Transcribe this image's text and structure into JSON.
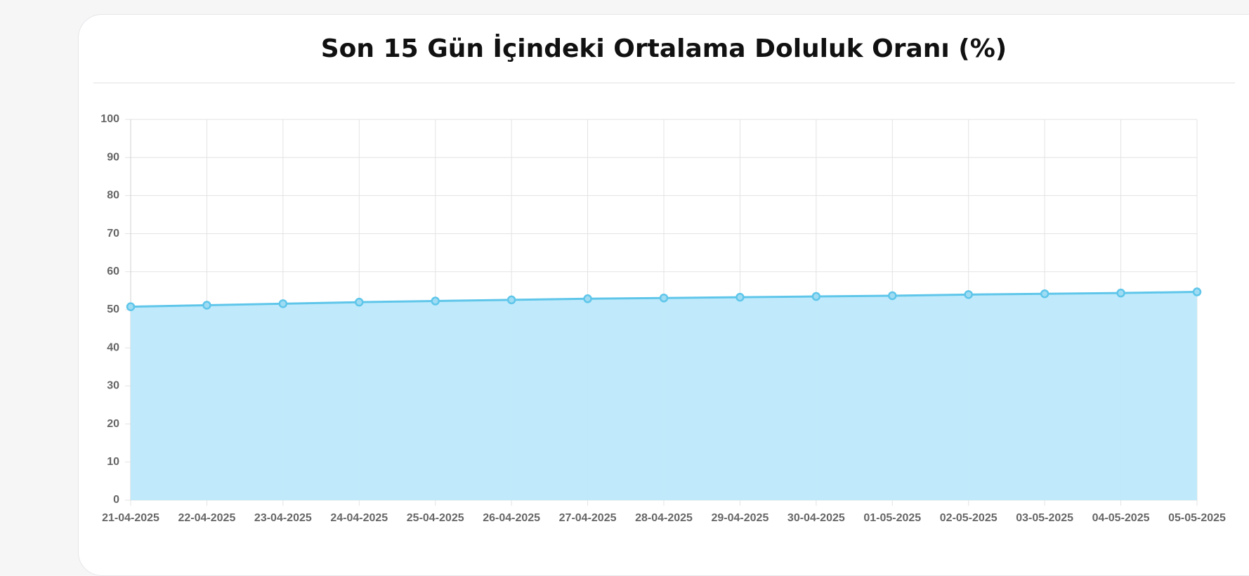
{
  "chart_data": {
    "type": "line",
    "title": "Son 15 Gün İçindeki Ortalama Doluluk Oranı (%)",
    "categories": [
      "21-04-2025",
      "22-04-2025",
      "23-04-2025",
      "24-04-2025",
      "25-04-2025",
      "26-04-2025",
      "27-04-2025",
      "28-04-2025",
      "29-04-2025",
      "30-04-2025",
      "01-05-2025",
      "02-05-2025",
      "03-05-2025",
      "04-05-2025",
      "05-05-2025"
    ],
    "values": [
      50.8,
      51.2,
      51.6,
      52.0,
      52.3,
      52.6,
      52.9,
      53.1,
      53.3,
      53.5,
      53.7,
      54.0,
      54.2,
      54.4,
      54.7
    ],
    "color": "#5fc6ea",
    "fill": true,
    "fill_color": "#bde9fb",
    "ylim": [
      0,
      100
    ],
    "yticks": [
      0,
      10,
      20,
      30,
      40,
      50,
      60,
      70,
      80,
      90,
      100
    ],
    "grid": true
  }
}
